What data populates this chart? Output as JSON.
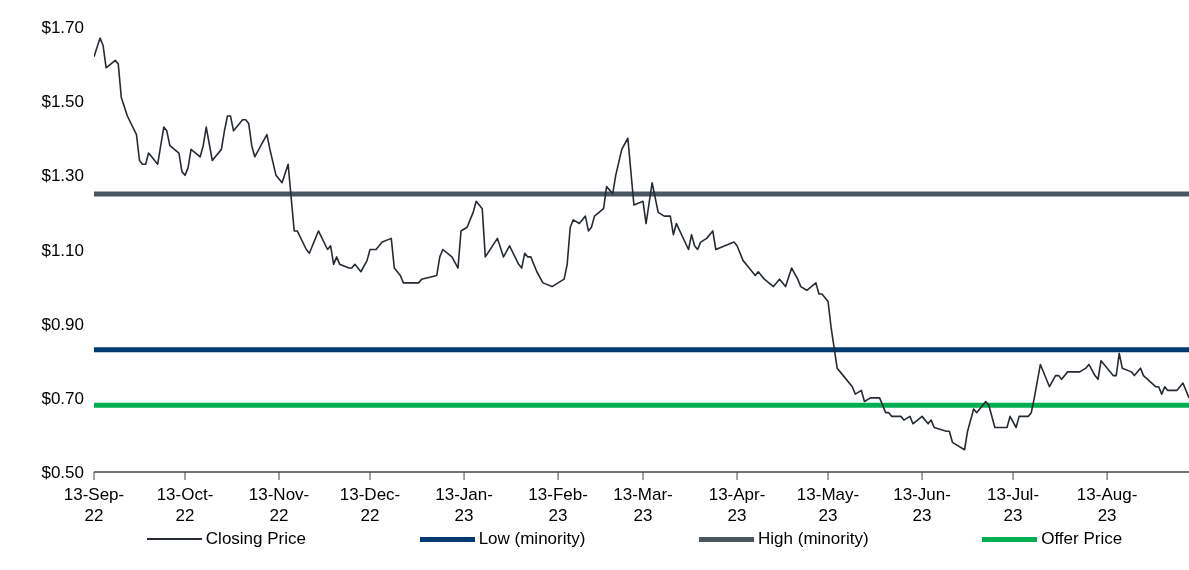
{
  "chart_data": {
    "type": "line",
    "x": [
      "2022-09-13",
      "2022-09-15",
      "2022-09-16",
      "2022-09-17",
      "2022-09-20",
      "2022-09-21",
      "2022-09-22",
      "2022-09-24",
      "2022-09-27",
      "2022-09-28",
      "2022-09-29",
      "2022-09-30",
      "2022-10-01",
      "2022-10-04",
      "2022-10-06",
      "2022-10-07",
      "2022-10-08",
      "2022-10-11",
      "2022-10-12",
      "2022-10-13",
      "2022-10-14",
      "2022-10-15",
      "2022-10-18",
      "2022-10-19",
      "2022-10-20",
      "2022-10-22",
      "2022-10-25",
      "2022-10-26",
      "2022-10-27",
      "2022-10-28",
      "2022-10-29",
      "2022-11-01",
      "2022-11-02",
      "2022-11-03",
      "2022-11-04",
      "2022-11-05",
      "2022-11-07",
      "2022-11-09",
      "2022-11-10",
      "2022-11-12",
      "2022-11-14",
      "2022-11-16",
      "2022-11-18",
      "2022-11-19",
      "2022-11-22",
      "2022-11-23",
      "2022-11-26",
      "2022-11-29",
      "2022-11-30",
      "2022-12-01",
      "2022-12-02",
      "2022-12-03",
      "2022-12-06",
      "2022-12-07",
      "2022-12-08",
      "2022-12-10",
      "2022-12-12",
      "2022-12-13",
      "2022-12-15",
      "2022-12-17",
      "2022-12-20",
      "2022-12-21",
      "2022-12-23",
      "2022-12-24",
      "2022-12-29",
      "2022-12-30",
      "2023-01-04",
      "2023-01-05",
      "2023-01-06",
      "2023-01-09",
      "2023-01-11",
      "2023-01-12",
      "2023-01-14",
      "2023-01-16",
      "2023-01-17",
      "2023-01-19",
      "2023-01-20",
      "2023-01-24",
      "2023-01-26",
      "2023-01-28",
      "2023-01-31",
      "2023-02-01",
      "2023-02-02",
      "2023-02-03",
      "2023-02-04",
      "2023-02-06",
      "2023-02-08",
      "2023-02-11",
      "2023-02-13",
      "2023-02-15",
      "2023-02-16",
      "2023-02-17",
      "2023-02-18",
      "2023-02-20",
      "2023-02-22",
      "2023-02-23",
      "2023-02-24",
      "2023-02-25",
      "2023-02-28",
      "2023-03-01",
      "2023-03-03",
      "2023-03-04",
      "2023-03-06",
      "2023-03-08",
      "2023-03-10",
      "2023-03-13",
      "2023-03-14",
      "2023-03-16",
      "2023-03-18",
      "2023-03-20",
      "2023-03-22",
      "2023-03-23",
      "2023-03-24",
      "2023-03-28",
      "2023-03-29",
      "2023-03-30",
      "2023-03-31",
      "2023-04-01",
      "2023-04-03",
      "2023-04-05",
      "2023-04-06",
      "2023-04-12",
      "2023-04-13",
      "2023-04-15",
      "2023-04-17",
      "2023-04-19",
      "2023-04-20",
      "2023-04-22",
      "2023-04-25",
      "2023-04-27",
      "2023-04-29",
      "2023-05-01",
      "2023-05-03",
      "2023-05-04",
      "2023-05-06",
      "2023-05-09",
      "2023-05-10",
      "2023-05-11",
      "2023-05-13",
      "2023-05-14",
      "2023-05-16",
      "2023-05-17",
      "2023-05-21",
      "2023-05-22",
      "2023-05-24",
      "2023-05-25",
      "2023-05-27",
      "2023-05-30",
      "2023-06-01",
      "2023-06-02",
      "2023-06-03",
      "2023-06-06",
      "2023-06-07",
      "2023-06-09",
      "2023-06-10",
      "2023-06-13",
      "2023-06-15",
      "2023-06-16",
      "2023-06-17",
      "2023-06-21",
      "2023-06-22",
      "2023-06-23",
      "2023-06-27",
      "2023-06-28",
      "2023-06-30",
      "2023-07-01",
      "2023-07-04",
      "2023-07-05",
      "2023-07-07",
      "2023-07-11",
      "2023-07-12",
      "2023-07-14",
      "2023-07-15",
      "2023-07-18",
      "2023-07-19",
      "2023-07-20",
      "2023-07-22",
      "2023-07-25",
      "2023-07-27",
      "2023-07-28",
      "2023-07-29",
      "2023-07-31",
      "2023-08-01",
      "2023-08-04",
      "2023-08-06",
      "2023-08-07",
      "2023-08-09",
      "2023-08-10",
      "2023-08-11",
      "2023-08-15",
      "2023-08-16",
      "2023-08-17",
      "2023-08-18",
      "2023-08-21",
      "2023-08-22",
      "2023-08-24",
      "2023-08-25",
      "2023-08-29",
      "2023-08-30",
      "2023-08-31",
      "2023-09-01",
      "2023-09-02",
      "2023-09-05",
      "2023-09-07",
      "2023-09-09"
    ],
    "series": [
      {
        "name": "Closing Price",
        "color": "#262b33",
        "values": [
          1.62,
          1.67,
          1.65,
          1.59,
          1.61,
          1.6,
          1.51,
          1.46,
          1.41,
          1.34,
          1.33,
          1.33,
          1.36,
          1.33,
          1.43,
          1.42,
          1.38,
          1.36,
          1.31,
          1.3,
          1.32,
          1.37,
          1.35,
          1.38,
          1.43,
          1.34,
          1.37,
          1.42,
          1.46,
          1.46,
          1.42,
          1.45,
          1.45,
          1.44,
          1.38,
          1.35,
          1.38,
          1.41,
          1.37,
          1.3,
          1.28,
          1.33,
          1.15,
          1.15,
          1.1,
          1.09,
          1.15,
          1.1,
          1.11,
          1.06,
          1.08,
          1.06,
          1.05,
          1.05,
          1.06,
          1.04,
          1.07,
          1.1,
          1.1,
          1.12,
          1.13,
          1.05,
          1.03,
          1.01,
          1.01,
          1.02,
          1.03,
          1.08,
          1.1,
          1.08,
          1.05,
          1.15,
          1.16,
          1.2,
          1.23,
          1.21,
          1.08,
          1.13,
          1.08,
          1.11,
          1.06,
          1.05,
          1.09,
          1.08,
          1.08,
          1.04,
          1.01,
          1.0,
          1.01,
          1.02,
          1.06,
          1.16,
          1.18,
          1.17,
          1.19,
          1.15,
          1.16,
          1.19,
          1.21,
          1.27,
          1.25,
          1.3,
          1.37,
          1.4,
          1.22,
          1.23,
          1.17,
          1.28,
          1.2,
          1.19,
          1.19,
          1.14,
          1.17,
          1.1,
          1.14,
          1.11,
          1.1,
          1.12,
          1.13,
          1.15,
          1.1,
          1.12,
          1.11,
          1.07,
          1.05,
          1.03,
          1.04,
          1.02,
          1.0,
          1.02,
          1.0,
          1.05,
          1.02,
          1.0,
          0.99,
          1.01,
          0.98,
          0.98,
          0.96,
          0.89,
          0.78,
          0.77,
          0.73,
          0.71,
          0.72,
          0.69,
          0.7,
          0.7,
          0.66,
          0.66,
          0.65,
          0.65,
          0.64,
          0.65,
          0.63,
          0.65,
          0.63,
          0.64,
          0.62,
          0.61,
          0.61,
          0.58,
          0.56,
          0.61,
          0.67,
          0.66,
          0.69,
          0.68,
          0.62,
          0.62,
          0.65,
          0.62,
          0.65,
          0.65,
          0.66,
          0.7,
          0.79,
          0.73,
          0.76,
          0.76,
          0.75,
          0.77,
          0.77,
          0.77,
          0.78,
          0.79,
          0.76,
          0.75,
          0.8,
          0.76,
          0.76,
          0.82,
          0.78,
          0.77,
          0.76,
          0.78,
          0.76,
          0.73,
          0.73,
          0.71,
          0.73,
          0.72,
          0.72,
          0.74,
          0.7
        ]
      }
    ],
    "ref_lines": [
      {
        "axis": "y",
        "value": 0.83,
        "label": "Low (minority)",
        "color": "#003a70"
      },
      {
        "axis": "y",
        "value": 1.25,
        "label": "High (minority)",
        "color": "#4a5661"
      },
      {
        "axis": "y",
        "value": 0.68,
        "label": "Offer Price",
        "color": "#00b050"
      }
    ],
    "xlim": [
      "2022-09-13",
      "2023-09-09"
    ],
    "xticks": [
      {
        "value": "2022-09-13",
        "label": "13-Sep-22"
      },
      {
        "value": "2022-10-13",
        "label": "13-Oct-22"
      },
      {
        "value": "2022-11-13",
        "label": "13-Nov-22"
      },
      {
        "value": "2022-12-13",
        "label": "13-Dec-22"
      },
      {
        "value": "2023-01-13",
        "label": "13-Jan-23"
      },
      {
        "value": "2023-02-13",
        "label": "13-Feb-23"
      },
      {
        "value": "2023-03-13",
        "label": "13-Mar-23"
      },
      {
        "value": "2023-04-13",
        "label": "13-Apr-23"
      },
      {
        "value": "2023-05-13",
        "label": "13-May-23"
      },
      {
        "value": "2023-06-13",
        "label": "13-Jun-23"
      },
      {
        "value": "2023-07-13",
        "label": "13-Jul-23"
      },
      {
        "value": "2023-08-13",
        "label": "13-Aug-23"
      }
    ],
    "ylim": [
      0.5,
      1.7
    ],
    "yticks": [
      {
        "value": 0.5,
        "label": "$0.50"
      },
      {
        "value": 0.7,
        "label": "$0.70"
      },
      {
        "value": 0.9,
        "label": "$0.90"
      },
      {
        "value": 1.1,
        "label": "$1.10"
      },
      {
        "value": 1.3,
        "label": "$1.30"
      },
      {
        "value": 1.5,
        "label": "$1.50"
      },
      {
        "value": 1.7,
        "label": "$1.70"
      }
    ],
    "legend": "bottom"
  }
}
